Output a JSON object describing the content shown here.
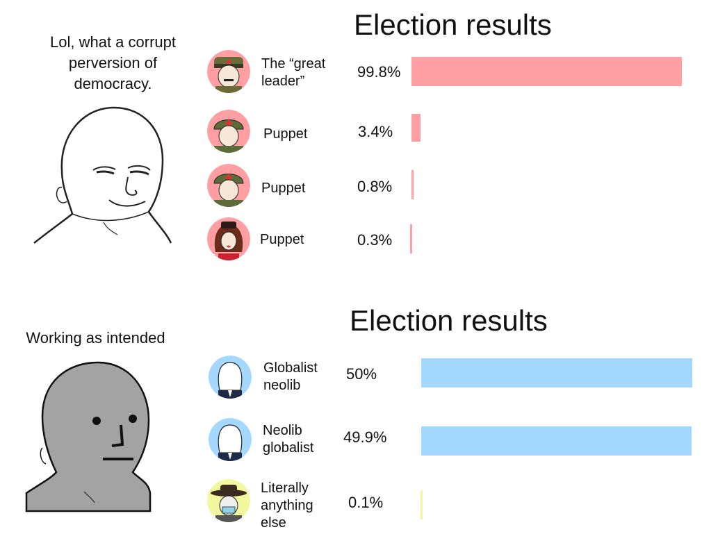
{
  "top": {
    "caption": "Lol, what a corrupt perversion of democracy.",
    "face_icon": "wojak-smug-face-icon",
    "title": "Election results",
    "bar_color": "#ff9fa3",
    "candidates": [
      {
        "name": "The “great leader”",
        "pct_label": "99.8%",
        "value": 99.8,
        "icon": "dictator-avatar-icon"
      },
      {
        "name": "Puppet",
        "pct_label": "3.4%",
        "value": 3.4,
        "icon": "soldier-avatar-icon"
      },
      {
        "name": "Puppet",
        "pct_label": "0.8%",
        "value": 0.8,
        "icon": "soldier-avatar-icon"
      },
      {
        "name": "Puppet",
        "pct_label": "0.3%",
        "value": 0.3,
        "icon": "woman-avatar-icon"
      }
    ]
  },
  "bottom": {
    "caption": "Working as intended",
    "face_icon": "npc-face-icon",
    "title": "Election results",
    "bar_color": "#a5d8ff",
    "last_bar_color": "#f3f7a0",
    "candidates": [
      {
        "name": "Globalist neolib",
        "pct_label": "50%",
        "value": 50,
        "icon": "suit-wojak-avatar-icon"
      },
      {
        "name": "Neolib globalist",
        "pct_label": "49.9%",
        "value": 49.9,
        "icon": "suit-wojak-avatar-icon"
      },
      {
        "name": "Literally anything else",
        "pct_label": "0.1%",
        "value": 0.1,
        "icon": "cowboy-avatar-icon"
      }
    ]
  }
}
